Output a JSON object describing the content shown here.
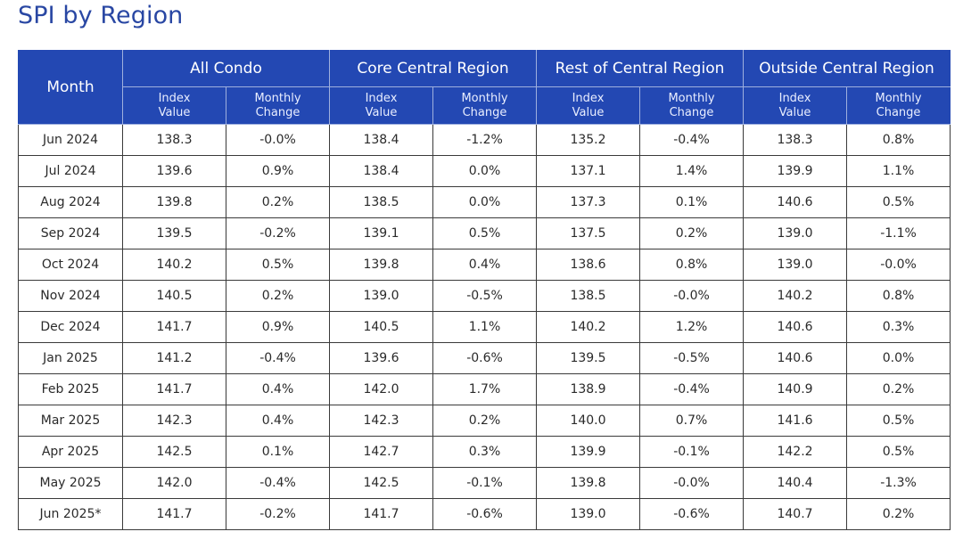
{
  "title": "SPI by Region",
  "header": {
    "month_label": "Month",
    "groups": [
      "All Condo",
      "Core Central Region",
      "Rest of Central Region",
      "Outside Central Region"
    ],
    "sub": {
      "index_line1": "Index",
      "index_line2": "Value",
      "change_line1": "Monthly",
      "change_line2": "Change"
    }
  },
  "rows": [
    [
      "Jun 2024",
      "138.3",
      "-0.0%",
      "138.4",
      "-1.2%",
      "135.2",
      "-0.4%",
      "138.3",
      "0.8%"
    ],
    [
      "Jul 2024",
      "139.6",
      "0.9%",
      "138.4",
      "0.0%",
      "137.1",
      "1.4%",
      "139.9",
      "1.1%"
    ],
    [
      "Aug 2024",
      "139.8",
      "0.2%",
      "138.5",
      "0.0%",
      "137.3",
      "0.1%",
      "140.6",
      "0.5%"
    ],
    [
      "Sep 2024",
      "139.5",
      "-0.2%",
      "139.1",
      "0.5%",
      "137.5",
      "0.2%",
      "139.0",
      "-1.1%"
    ],
    [
      "Oct 2024",
      "140.2",
      "0.5%",
      "139.8",
      "0.4%",
      "138.6",
      "0.8%",
      "139.0",
      "-0.0%"
    ],
    [
      "Nov 2024",
      "140.5",
      "0.2%",
      "139.0",
      "-0.5%",
      "138.5",
      "-0.0%",
      "140.2",
      "0.8%"
    ],
    [
      "Dec 2024",
      "141.7",
      "0.9%",
      "140.5",
      "1.1%",
      "140.2",
      "1.2%",
      "140.6",
      "0.3%"
    ],
    [
      "Jan 2025",
      "141.2",
      "-0.4%",
      "139.6",
      "-0.6%",
      "139.5",
      "-0.5%",
      "140.6",
      "0.0%"
    ],
    [
      "Feb 2025",
      "141.7",
      "0.4%",
      "142.0",
      "1.7%",
      "138.9",
      "-0.4%",
      "140.9",
      "0.2%"
    ],
    [
      "Mar 2025",
      "142.3",
      "0.4%",
      "142.3",
      "0.2%",
      "140.0",
      "0.7%",
      "141.6",
      "0.5%"
    ],
    [
      "Apr 2025",
      "142.5",
      "0.1%",
      "142.7",
      "0.3%",
      "139.9",
      "-0.1%",
      "142.2",
      "0.5%"
    ],
    [
      "May 2025",
      "142.0",
      "-0.4%",
      "142.5",
      "-0.1%",
      "139.8",
      "-0.0%",
      "140.4",
      "-1.3%"
    ],
    [
      "Jun 2025*",
      "141.7",
      "-0.2%",
      "141.7",
      "-0.6%",
      "139.0",
      "-0.6%",
      "140.7",
      "0.2%"
    ]
  ],
  "colors": {
    "title": "#2947a3",
    "header_bg": "#2348b3",
    "header_text": "#ffffff",
    "grid": "#3a3a3a"
  }
}
